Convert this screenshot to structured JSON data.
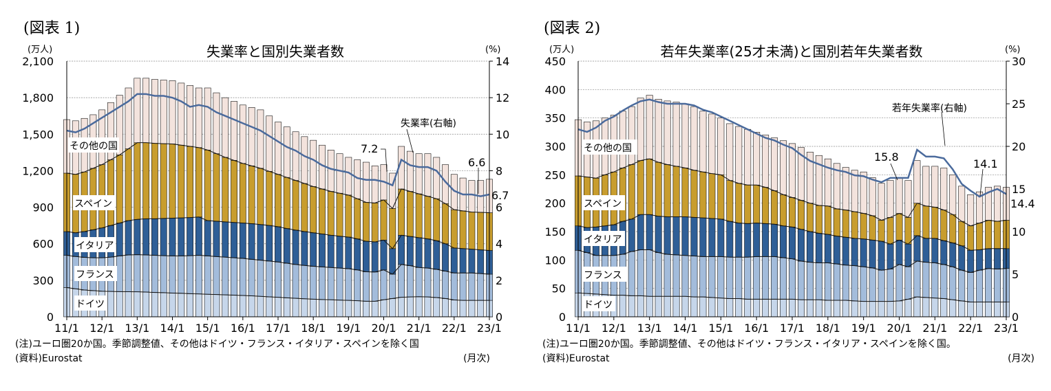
{
  "colors": {
    "germany": "#c6d6ea",
    "france": "#a3bcdb",
    "italy": "#2f5f97",
    "spain": "#c89d2e",
    "other": "#f3e3dd",
    "rate_line": "#4a6a9c"
  },
  "charts": [
    {
      "figure_label": "(図表 1)",
      "title": "失業率と国別失業者数",
      "left_unit": "(万人)",
      "right_unit": "(%)",
      "note": "(注)ユーロ圏20か国。季節調整値、その他はドイツ・フランス・イタリア・スペインを除く国",
      "source": "(資料)Eurostat",
      "x_unit": "(月次)",
      "rate_label": "失業率(右軸)",
      "annotations": [
        "7.2",
        "6.6",
        "6.7"
      ],
      "series_labels": [
        "その他の国",
        "スペイン",
        "イタリア",
        "フランス",
        "ドイツ"
      ]
    },
    {
      "figure_label": "(図表 2)",
      "title": "若年失業率(25才未満)と国別若年失業者数",
      "left_unit": "(万人)",
      "right_unit": "(%)",
      "note": "(注)ユーロ圏20か国。季節調整値、その他はドイツ・フランス・イタリア・スペインを除く国。",
      "source": "(資料)Eurostat",
      "x_unit": "(月次)",
      "rate_label": "若年失業率(右軸)",
      "annotations": [
        "15.8",
        "14.1",
        "14.4"
      ],
      "series_labels": [
        "その他の国",
        "スペイン",
        "イタリア",
        "フランス",
        "ドイツ"
      ]
    }
  ],
  "chart_data": [
    {
      "type": "bar",
      "stacked": true,
      "title": "失業率と国別失業者数",
      "ylabel": "(万人)",
      "y2label": "(%)",
      "ylim": [
        0,
        2100
      ],
      "y2lim": [
        0,
        14
      ],
      "yticks": [
        "0",
        "300",
        "600",
        "900",
        "1,200",
        "1,500",
        "1,800",
        "2,100"
      ],
      "y2ticks": [
        "0",
        "2",
        "4",
        "6",
        "8",
        "10",
        "12",
        "14"
      ],
      "xticks": [
        "11/1",
        "12/1",
        "13/1",
        "14/1",
        "15/1",
        "16/1",
        "17/1",
        "18/1",
        "19/1",
        "20/1",
        "21/1",
        "22/1",
        "23/1"
      ],
      "grid": true,
      "x": [
        "11/1",
        "11/4",
        "11/7",
        "11/10",
        "12/1",
        "12/4",
        "12/7",
        "12/10",
        "13/1",
        "13/4",
        "13/7",
        "13/10",
        "14/1",
        "14/4",
        "14/7",
        "14/10",
        "15/1",
        "15/4",
        "15/7",
        "15/10",
        "16/1",
        "16/4",
        "16/7",
        "16/10",
        "17/1",
        "17/4",
        "17/7",
        "17/10",
        "18/1",
        "18/4",
        "18/7",
        "18/10",
        "19/1",
        "19/4",
        "19/7",
        "19/10",
        "20/1",
        "20/4",
        "20/7",
        "20/10",
        "21/1",
        "21/4",
        "21/7",
        "21/10",
        "22/1",
        "22/4",
        "22/7",
        "22/10",
        "23/1"
      ],
      "series": [
        {
          "name": "ドイツ",
          "values": [
            240,
            230,
            220,
            215,
            210,
            208,
            207,
            206,
            205,
            203,
            200,
            198,
            195,
            193,
            190,
            188,
            185,
            183,
            180,
            178,
            175,
            172,
            168,
            164,
            160,
            156,
            152,
            148,
            145,
            142,
            140,
            137,
            135,
            132,
            128,
            128,
            140,
            150,
            160,
            163,
            165,
            163,
            158,
            150,
            138,
            135,
            135,
            135,
            135
          ]
        },
        {
          "name": "フランス",
          "values": [
            265,
            265,
            268,
            270,
            275,
            282,
            293,
            302,
            305,
            305,
            305,
            304,
            305,
            307,
            312,
            317,
            315,
            312,
            310,
            307,
            305,
            300,
            297,
            294,
            290,
            284,
            278,
            274,
            270,
            268,
            265,
            263,
            260,
            253,
            242,
            240,
            245,
            200,
            270,
            257,
            240,
            237,
            232,
            225,
            222,
            225,
            225,
            220,
            215
          ]
        },
        {
          "name": "イタリア",
          "values": [
            195,
            195,
            212,
            230,
            245,
            260,
            270,
            282,
            290,
            297,
            300,
            306,
            310,
            312,
            313,
            315,
            290,
            290,
            290,
            290,
            290,
            293,
            293,
            292,
            290,
            285,
            282,
            278,
            275,
            270,
            265,
            262,
            260,
            255,
            250,
            247,
            245,
            210,
            240,
            240,
            245,
            240,
            235,
            225,
            205,
            200,
            195,
            195,
            195
          ]
        },
        {
          "name": "スペイン",
          "values": [
            480,
            480,
            490,
            505,
            520,
            540,
            560,
            590,
            630,
            625,
            620,
            614,
            610,
            598,
            585,
            570,
            580,
            555,
            530,
            510,
            490,
            475,
            462,
            445,
            430,
            420,
            408,
            395,
            380,
            370,
            360,
            353,
            345,
            330,
            320,
            320,
            330,
            330,
            380,
            370,
            360,
            350,
            345,
            330,
            315,
            310,
            305,
            308,
            310
          ]
        },
        {
          "name": "その他の国",
          "values": [
            440,
            440,
            440,
            440,
            450,
            470,
            490,
            500,
            530,
            530,
            525,
            523,
            520,
            510,
            500,
            490,
            510,
            500,
            490,
            485,
            480,
            480,
            480,
            455,
            430,
            415,
            400,
            385,
            380,
            360,
            340,
            325,
            310,
            320,
            330,
            305,
            290,
            290,
            350,
            330,
            330,
            350,
            340,
            320,
            290,
            270,
            260,
            262,
            275
          ]
        },
        {
          "name": "失業率(右軸)",
          "axis": "right",
          "type": "line",
          "values": [
            10.2,
            10.1,
            10.3,
            10.6,
            10.9,
            11.2,
            11.5,
            11.8,
            12.2,
            12.2,
            12.1,
            12.1,
            12.0,
            11.8,
            11.5,
            11.6,
            11.5,
            11.2,
            11.0,
            10.8,
            10.6,
            10.4,
            10.2,
            9.9,
            9.6,
            9.3,
            9.1,
            8.8,
            8.6,
            8.3,
            8.1,
            8.0,
            7.9,
            7.6,
            7.5,
            7.5,
            7.4,
            7.2,
            8.6,
            8.3,
            8.2,
            8.2,
            8.0,
            7.4,
            6.9,
            6.7,
            6.7,
            6.6,
            6.7
          ]
        }
      ]
    },
    {
      "type": "bar",
      "stacked": true,
      "title": "若年失業率(25才未満)と国別若年失業者数",
      "ylabel": "(万人)",
      "y2label": "(%)",
      "ylim": [
        0,
        450
      ],
      "y2lim": [
        0,
        30
      ],
      "yticks": [
        "0",
        "50",
        "100",
        "150",
        "200",
        "250",
        "300",
        "350",
        "400",
        "450"
      ],
      "y2ticks": [
        "0",
        "5",
        "10",
        "15",
        "20",
        "25",
        "30"
      ],
      "xticks": [
        "11/1",
        "12/1",
        "13/1",
        "14/1",
        "15/1",
        "16/1",
        "17/1",
        "18/1",
        "19/1",
        "20/1",
        "21/1",
        "22/1",
        "23/1"
      ],
      "grid": true,
      "x": [
        "11/1",
        "11/4",
        "11/7",
        "11/10",
        "12/1",
        "12/4",
        "12/7",
        "12/10",
        "13/1",
        "13/4",
        "13/7",
        "13/10",
        "14/1",
        "14/4",
        "14/7",
        "14/10",
        "15/1",
        "15/4",
        "15/7",
        "15/10",
        "16/1",
        "16/4",
        "16/7",
        "16/10",
        "17/1",
        "17/4",
        "17/7",
        "17/10",
        "18/1",
        "18/4",
        "18/7",
        "18/10",
        "19/1",
        "19/4",
        "19/7",
        "19/10",
        "20/1",
        "20/4",
        "20/7",
        "20/10",
        "21/1",
        "21/4",
        "21/7",
        "21/10",
        "22/1",
        "22/4",
        "22/7",
        "22/10",
        "23/1"
      ],
      "series": [
        {
          "name": "ドイツ",
          "values": [
            42,
            41,
            40,
            39,
            38,
            38,
            37,
            37,
            36,
            36,
            36,
            36,
            36,
            35,
            35,
            34,
            33,
            32,
            32,
            31,
            31,
            31,
            31,
            31,
            31,
            30,
            30,
            30,
            29,
            29,
            29,
            28,
            27,
            27,
            27,
            27,
            28,
            31,
            35,
            34,
            33,
            32,
            30,
            28,
            26,
            26,
            26,
            26,
            26
          ]
        },
        {
          "name": "フランス",
          "values": [
            75,
            72,
            68,
            69,
            70,
            72,
            78,
            81,
            82,
            77,
            74,
            73,
            72,
            72,
            71,
            72,
            73,
            73,
            73,
            74,
            75,
            75,
            75,
            73,
            71,
            68,
            66,
            65,
            66,
            64,
            62,
            62,
            61,
            59,
            55,
            57,
            64,
            57,
            63,
            62,
            62,
            60,
            58,
            54,
            52,
            56,
            59,
            58,
            59
          ]
        },
        {
          "name": "イタリア",
          "values": [
            43,
            44,
            50,
            52,
            54,
            58,
            57,
            62,
            62,
            64,
            66,
            67,
            68,
            68,
            68,
            67,
            66,
            63,
            60,
            59,
            59,
            58,
            57,
            56,
            56,
            56,
            54,
            52,
            50,
            49,
            49,
            48,
            49,
            49,
            51,
            44,
            43,
            40,
            45,
            42,
            43,
            42,
            42,
            43,
            39,
            36,
            35,
            36,
            35
          ]
        },
        {
          "name": "スペイン",
          "values": [
            88,
            89,
            86,
            90,
            93,
            94,
            96,
            95,
            98,
            95,
            92,
            89,
            86,
            83,
            81,
            79,
            78,
            72,
            70,
            68,
            67,
            64,
            59,
            55,
            52,
            51,
            50,
            49,
            50,
            48,
            48,
            47,
            45,
            43,
            37,
            47,
            47,
            47,
            57,
            57,
            55,
            54,
            50,
            43,
            43,
            47,
            50,
            48,
            50
          ]
        },
        {
          "name": "その他の国",
          "values": [
            99,
            97,
            101,
            100,
            100,
            100,
            102,
            110,
            112,
            111,
            112,
            113,
            113,
            112,
            107,
            105,
            100,
            100,
            100,
            98,
            93,
            92,
            93,
            95,
            95,
            93,
            90,
            88,
            83,
            80,
            75,
            73,
            73,
            67,
            65,
            65,
            63,
            65,
            75,
            70,
            72,
            74,
            70,
            62,
            55,
            55,
            58,
            62,
            58
          ]
        },
        {
          "name": "若年失業率(右軸)",
          "axis": "right",
          "type": "line",
          "values": [
            22.0,
            21.7,
            22.2,
            23.0,
            23.5,
            24.2,
            24.8,
            25.3,
            25.5,
            25.2,
            25.0,
            25.0,
            25.0,
            24.8,
            24.3,
            24.0,
            23.5,
            23.0,
            22.5,
            22.0,
            21.5,
            21.0,
            20.7,
            20.2,
            19.8,
            19.0,
            18.3,
            17.9,
            17.5,
            17.2,
            17.0,
            16.6,
            16.5,
            16.1,
            15.8,
            16.3,
            16.3,
            16.3,
            19.6,
            18.8,
            18.8,
            18.6,
            17.3,
            15.6,
            14.8,
            14.1,
            14.6,
            15.0,
            14.4
          ]
        }
      ]
    }
  ]
}
